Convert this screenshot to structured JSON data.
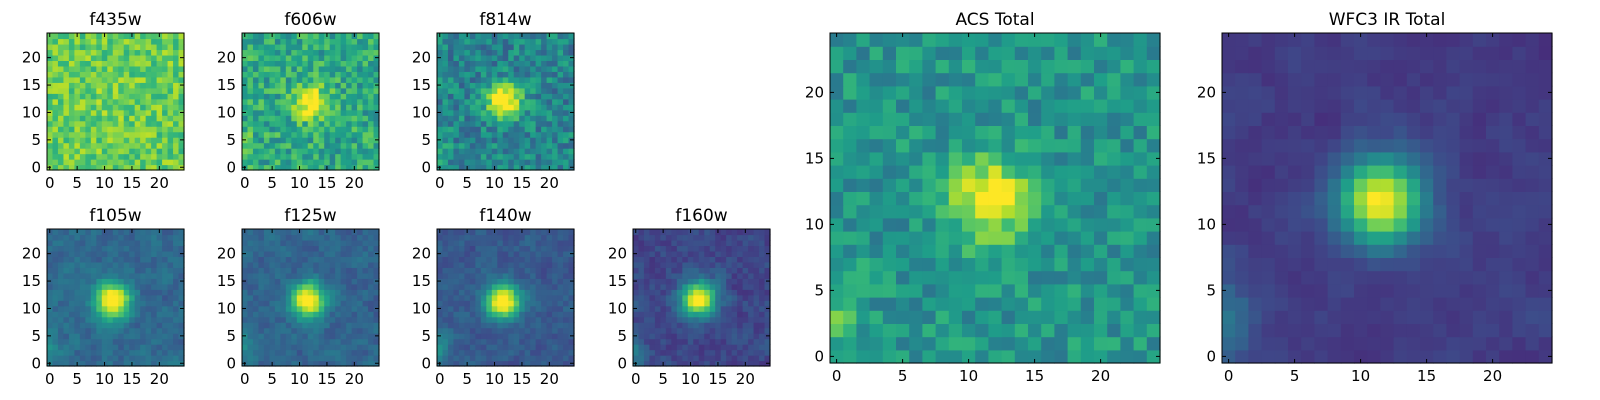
{
  "figure_title": "",
  "colormap": "viridis",
  "colormap_stops": [
    "#440154",
    "#482878",
    "#3e4989",
    "#31688e",
    "#26828e",
    "#1f9e89",
    "#35b779",
    "#6ece58",
    "#b5de2b",
    "#fde725"
  ],
  "chart_data": [
    {
      "type": "heatmap",
      "title": "f435w",
      "grid_size": 25,
      "xlim": [
        0,
        24
      ],
      "ylim": [
        0,
        24
      ],
      "xticks": [
        0,
        5,
        10,
        15,
        20
      ],
      "yticks": [
        0,
        5,
        10,
        15,
        20
      ],
      "source_center": [
        12,
        12
      ],
      "source_peak": 0.06,
      "background_level": 0.76,
      "noise_level": 0.14,
      "edge_brightening": "none",
      "smoothness": 0.0
    },
    {
      "type": "heatmap",
      "title": "f606w",
      "grid_size": 25,
      "xlim": [
        0,
        24
      ],
      "ylim": [
        0,
        24
      ],
      "xticks": [
        0,
        5,
        10,
        15,
        20
      ],
      "yticks": [
        0,
        5,
        10,
        15,
        20
      ],
      "source_center": [
        11.8,
        12
      ],
      "source_peak": 0.45,
      "background_level": 0.6,
      "noise_level": 0.17,
      "edge_brightening": "lower-left",
      "smoothness": 0.0
    },
    {
      "type": "heatmap",
      "title": "f814w",
      "grid_size": 25,
      "xlim": [
        0,
        24
      ],
      "ylim": [
        0,
        24
      ],
      "xticks": [
        0,
        5,
        10,
        15,
        20
      ],
      "yticks": [
        0,
        5,
        10,
        15,
        20
      ],
      "source_center": [
        11.8,
        12
      ],
      "source_peak": 0.68,
      "background_level": 0.45,
      "noise_level": 0.16,
      "edge_brightening": "lower-left",
      "smoothness": 0.0
    },
    {
      "type": "heatmap",
      "title": "f105w",
      "grid_size": 25,
      "xlim": [
        0,
        24
      ],
      "ylim": [
        0,
        24
      ],
      "xticks": [
        0,
        5,
        10,
        15,
        20
      ],
      "yticks": [
        0,
        5,
        10,
        15,
        20
      ],
      "source_center": [
        11.5,
        11.5
      ],
      "source_peak": 0.8,
      "background_level": 0.34,
      "noise_level": 0.1,
      "edge_brightening": "lower-left",
      "smoothness": 0.5
    },
    {
      "type": "heatmap",
      "title": "f125w",
      "grid_size": 25,
      "xlim": [
        0,
        24
      ],
      "ylim": [
        0,
        24
      ],
      "xticks": [
        0,
        5,
        10,
        15,
        20
      ],
      "yticks": [
        0,
        5,
        10,
        15,
        20
      ],
      "source_center": [
        11.5,
        11.5
      ],
      "source_peak": 0.8,
      "background_level": 0.32,
      "noise_level": 0.1,
      "edge_brightening": "lower-left",
      "smoothness": 0.5
    },
    {
      "type": "heatmap",
      "title": "f140w",
      "grid_size": 25,
      "xlim": [
        0,
        24
      ],
      "ylim": [
        0,
        24
      ],
      "xticks": [
        0,
        5,
        10,
        15,
        20
      ],
      "yticks": [
        0,
        5,
        10,
        15,
        20
      ],
      "source_center": [
        11.5,
        11.5
      ],
      "source_peak": 0.82,
      "background_level": 0.28,
      "noise_level": 0.09,
      "edge_brightening": "lower-left",
      "smoothness": 0.5
    },
    {
      "type": "heatmap",
      "title": "f160w",
      "grid_size": 25,
      "xlim": [
        0,
        24
      ],
      "ylim": [
        0,
        24
      ],
      "xticks": [
        0,
        5,
        10,
        15,
        20
      ],
      "yticks": [
        0,
        5,
        10,
        15,
        20
      ],
      "source_center": [
        11.5,
        11.8
      ],
      "source_peak": 0.85,
      "background_level": 0.22,
      "noise_level": 0.09,
      "edge_brightening": "lower-left",
      "smoothness": 0.4
    },
    {
      "type": "heatmap",
      "title": "ACS Total",
      "grid_size": 25,
      "xlim": [
        0,
        24
      ],
      "ylim": [
        0,
        24
      ],
      "xticks": [
        0,
        5,
        10,
        15,
        20
      ],
      "yticks": [
        0,
        5,
        10,
        15,
        20
      ],
      "source_center": [
        11.6,
        12
      ],
      "source_peak": 0.5,
      "background_level": 0.52,
      "noise_level": 0.13,
      "edge_brightening": "lower-left",
      "smoothness": 0.0
    },
    {
      "type": "heatmap",
      "title": "WFC3 IR Total",
      "grid_size": 25,
      "xlim": [
        0,
        24
      ],
      "ylim": [
        0,
        24
      ],
      "xticks": [
        0,
        5,
        10,
        15,
        20
      ],
      "yticks": [
        0,
        5,
        10,
        15,
        20
      ],
      "source_center": [
        11.6,
        11.8
      ],
      "source_peak": 0.85,
      "background_level": 0.18,
      "noise_level": 0.06,
      "edge_brightening": "lower-left",
      "smoothness": 0.6
    }
  ]
}
